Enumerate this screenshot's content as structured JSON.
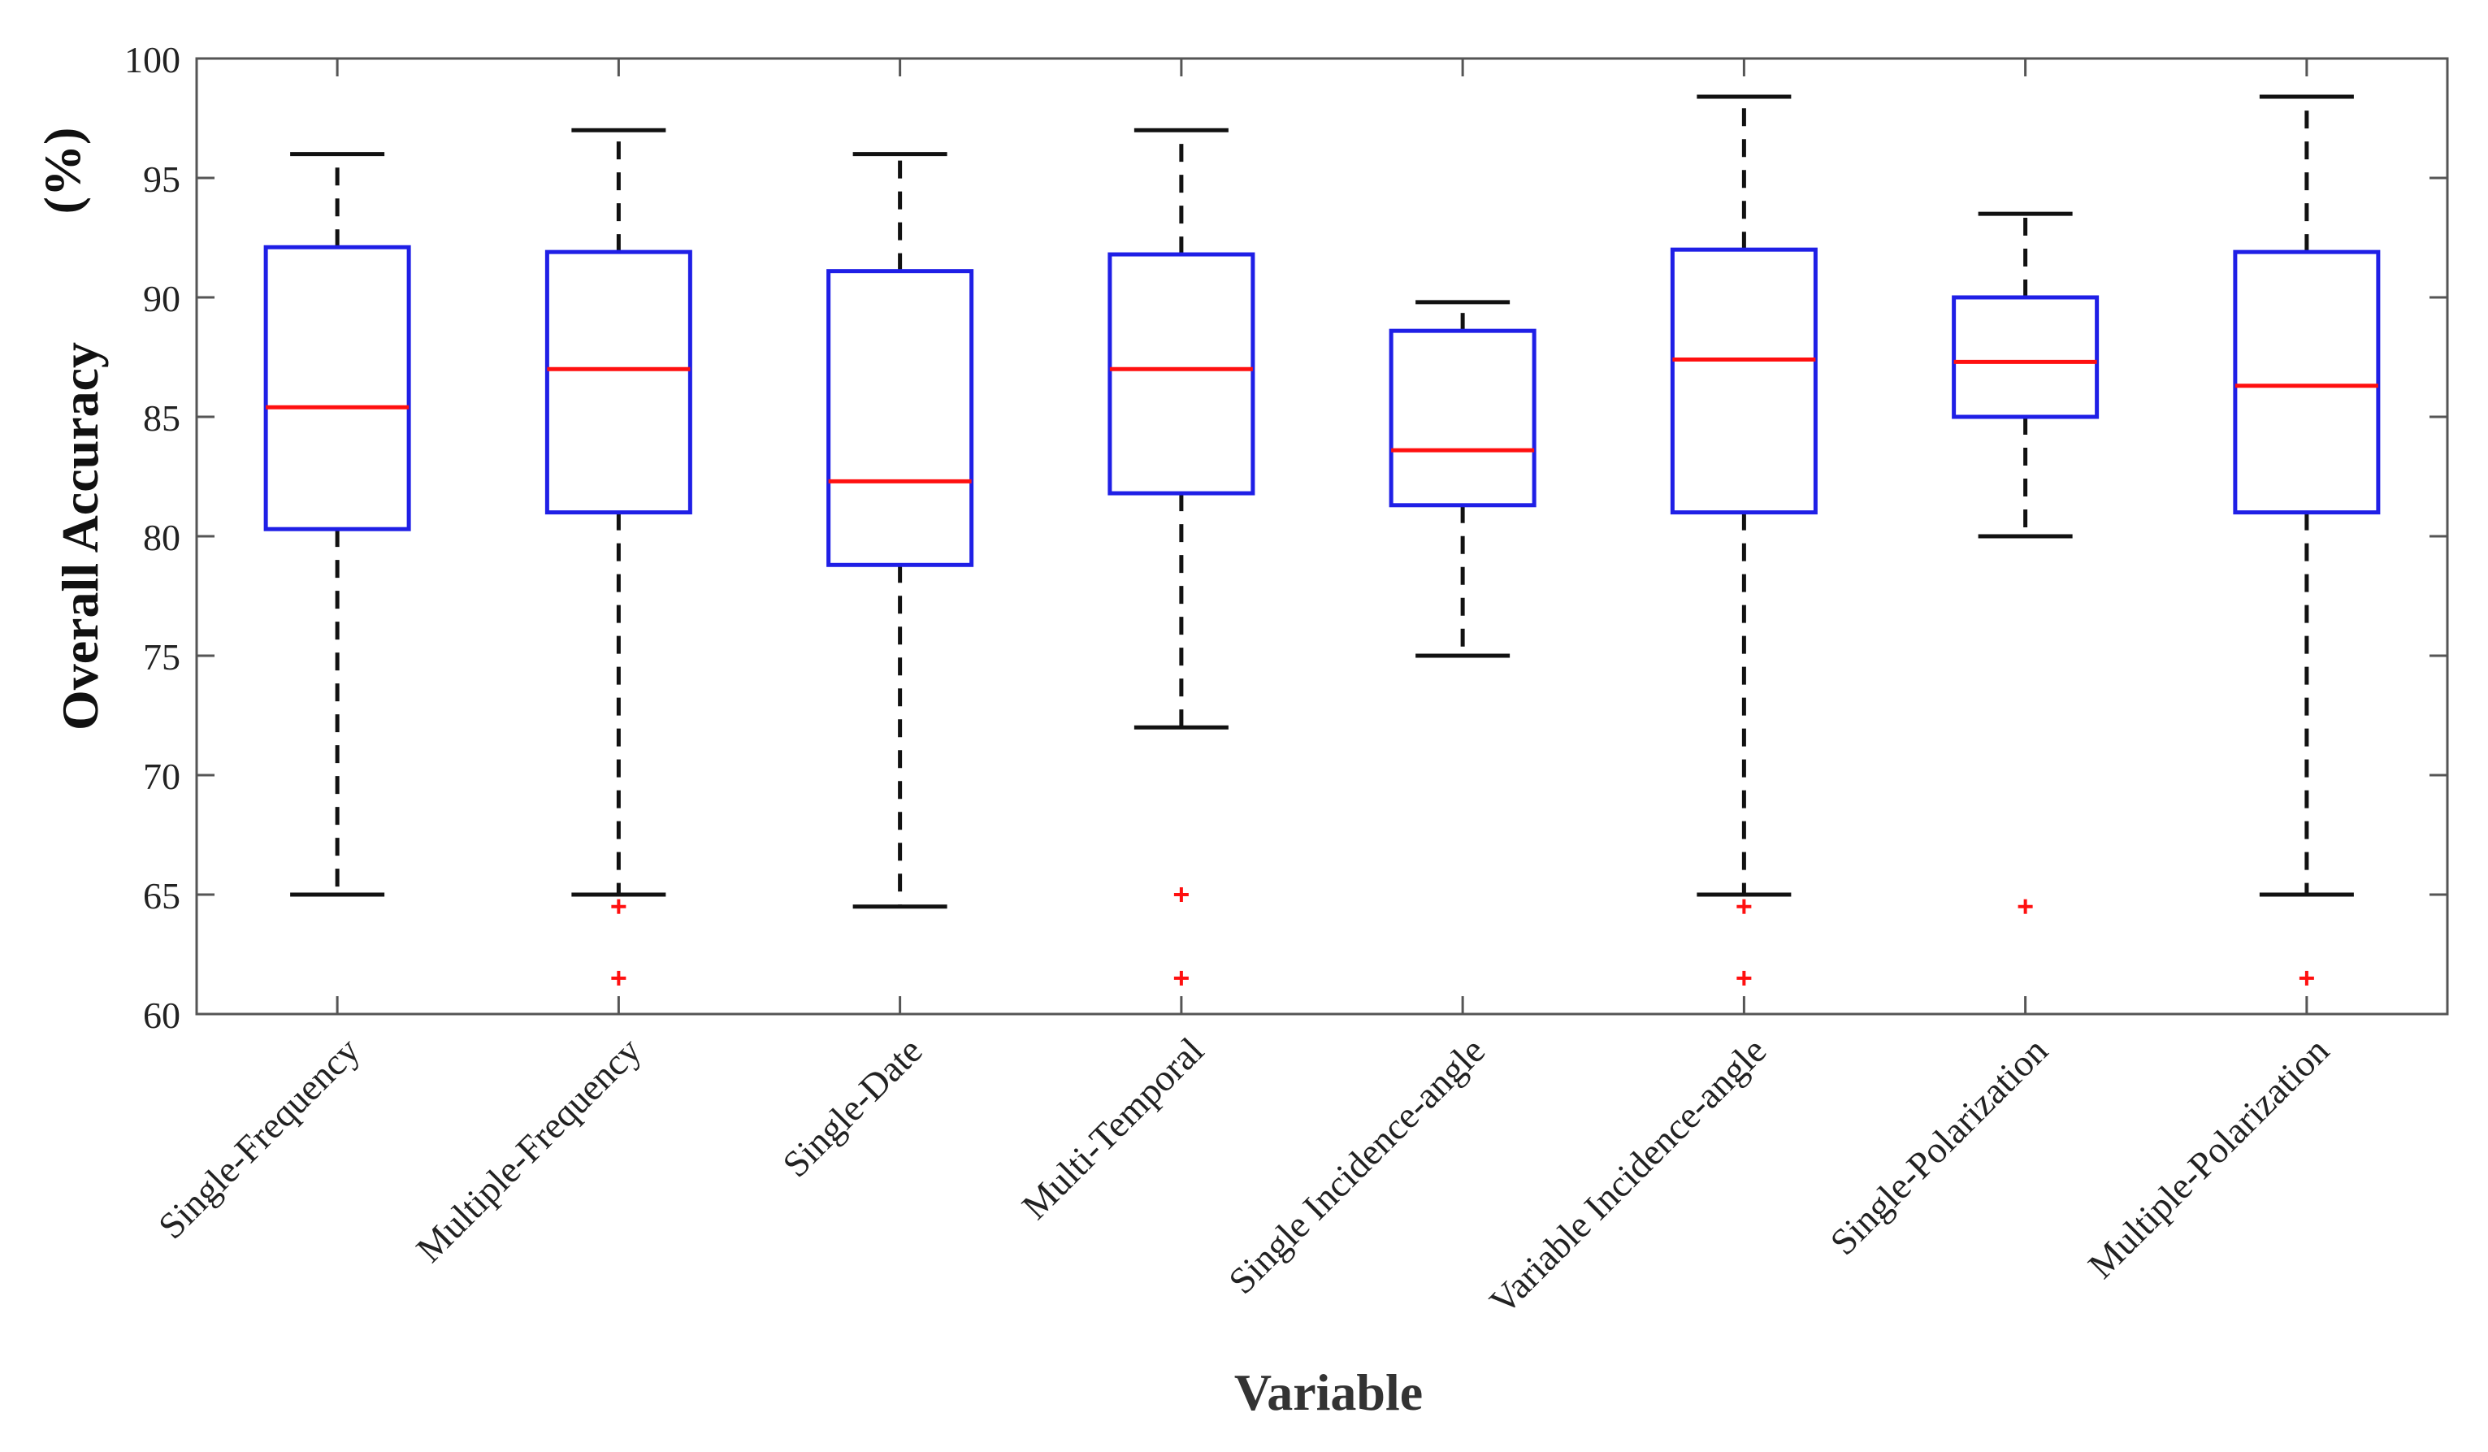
{
  "chart_data": {
    "type": "boxplot",
    "xlabel": "Variable",
    "ylabel": "Overall Accuracy",
    "ylabel_unit": "(%)",
    "ylim": [
      60,
      100
    ],
    "yticks": [
      60,
      65,
      70,
      75,
      80,
      85,
      90,
      95,
      100
    ],
    "categories": [
      "Single-Frequency",
      "Multiple-Frequency",
      "Single-Date",
      "Multi-Temporal",
      "Single Incidence-angle",
      "Variable Incidence-angle",
      "Single-Polarization",
      "Multiple-Polarization"
    ],
    "boxes": [
      {
        "whisker_low": 65.0,
        "q1": 80.3,
        "median": 85.4,
        "q3": 92.1,
        "whisker_high": 96.0,
        "outliers": []
      },
      {
        "whisker_low": 65.0,
        "q1": 81.0,
        "median": 87.0,
        "q3": 91.9,
        "whisker_high": 97.0,
        "outliers": [
          64.5,
          61.5
        ]
      },
      {
        "whisker_low": 64.5,
        "q1": 78.8,
        "median": 82.3,
        "q3": 91.1,
        "whisker_high": 96.0,
        "outliers": []
      },
      {
        "whisker_low": 72.0,
        "q1": 81.8,
        "median": 87.0,
        "q3": 91.8,
        "whisker_high": 97.0,
        "outliers": [
          65.0,
          61.5
        ]
      },
      {
        "whisker_low": 75.0,
        "q1": 81.3,
        "median": 83.6,
        "q3": 88.6,
        "whisker_high": 89.8,
        "outliers": []
      },
      {
        "whisker_low": 65.0,
        "q1": 81.0,
        "median": 87.4,
        "q3": 92.0,
        "whisker_high": 98.4,
        "outliers": [
          64.5,
          61.5
        ]
      },
      {
        "whisker_low": 80.0,
        "q1": 85.0,
        "median": 87.3,
        "q3": 90.0,
        "whisker_high": 93.5,
        "outliers": [
          64.5
        ]
      },
      {
        "whisker_low": 65.0,
        "q1": 81.0,
        "median": 86.3,
        "q3": 91.9,
        "whisker_high": 98.4,
        "outliers": [
          61.5
        ]
      }
    ],
    "colors": {
      "box": "#1f1fe6",
      "median": "#ff1010",
      "whisker": "#111111",
      "outlier": "#ff1010",
      "axis": "#555555"
    }
  }
}
